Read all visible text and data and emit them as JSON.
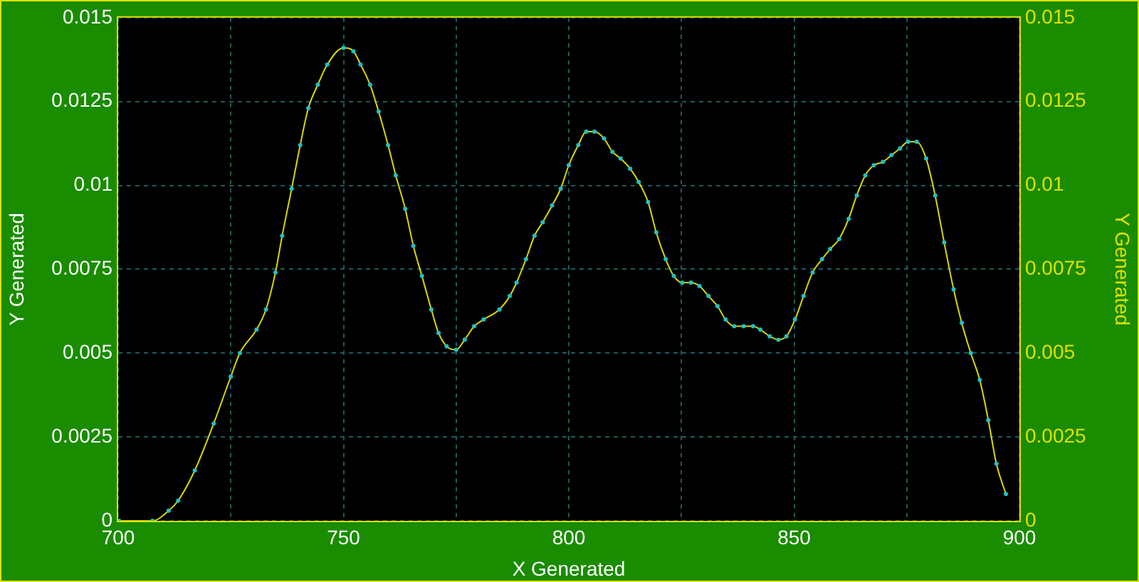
{
  "chart_data": {
    "type": "line",
    "xlabel": "X Generated",
    "ylabel": "Y Generated",
    "y2label": "Y Generated",
    "series": [
      {
        "color": "#d8d800",
        "x": [
          700.2,
          707.6,
          711.2,
          713.3,
          717,
          721.2,
          725,
          727,
          730.7,
          732.8,
          734.9,
          736.4,
          738.5,
          740.4,
          742.2,
          744.3,
          746.4,
          750,
          752.2,
          753.8,
          755.9,
          757.8,
          759.9,
          761.6,
          763.7,
          765.5,
          767.4,
          769.5,
          771.1,
          772.9,
          775,
          776.9,
          779,
          781.1,
          784.6,
          786.9,
          788.4,
          790.5,
          792.4,
          794.2,
          796.3,
          798.2,
          800,
          802.1,
          803.9,
          805.7,
          807.8,
          809.7,
          811.5,
          813.6,
          815.5,
          817.6,
          819.4,
          821.5,
          823.3,
          825.2,
          827.1,
          829,
          831,
          833,
          834.8,
          836.7,
          838.8,
          840.9,
          842.5,
          844.6,
          846.5,
          848.3,
          850.2,
          852.1,
          854.1,
          856.2,
          858,
          860,
          862.1,
          863.9,
          865.8,
          867.7,
          869.7,
          871.6,
          873.5,
          875.3,
          877.2,
          879.3,
          881.3,
          883.3,
          885.4,
          887.2,
          889.2,
          891.2,
          893.1,
          894.9,
          897
        ],
        "values": [
          0,
          0,
          0.0003,
          0.0006,
          0.0015,
          0.0029,
          0.0043,
          0.005,
          0.0057,
          0.0063,
          0.0074,
          0.0085,
          0.0099,
          0.0112,
          0.0123,
          0.013,
          0.0136,
          0.0141,
          0.014,
          0.0136,
          0.013,
          0.0122,
          0.0112,
          0.0103,
          0.0093,
          0.0082,
          0.0073,
          0.0063,
          0.0056,
          0.0052,
          0.0051,
          0.0054,
          0.0058,
          0.006,
          0.0063,
          0.0067,
          0.0071,
          0.0078,
          0.0085,
          0.0089,
          0.0094,
          0.0099,
          0.0106,
          0.0112,
          0.0116,
          0.0116,
          0.0114,
          0.011,
          0.0108,
          0.0105,
          0.0101,
          0.0095,
          0.0086,
          0.0078,
          0.0073,
          0.0071,
          0.0071,
          0.007,
          0.0067,
          0.0064,
          0.006,
          0.0058,
          0.0058,
          0.0058,
          0.0057,
          0.0055,
          0.0054,
          0.0055,
          0.006,
          0.0067,
          0.0074,
          0.0078,
          0.0081,
          0.0084,
          0.009,
          0.0097,
          0.0103,
          0.0106,
          0.0107,
          0.0109,
          0.0111,
          0.0113,
          0.0113,
          0.0108,
          0.0097,
          0.0083,
          0.0069,
          0.0059,
          0.005,
          0.0042,
          0.003,
          0.0017,
          0.0008
        ]
      }
    ],
    "xlim": [
      700,
      900
    ],
    "xticks": [
      700,
      {
        "value": 725,
        "label": null
      },
      750,
      {
        "value": 775,
        "label": null
      },
      800,
      {
        "value": 825,
        "label": null
      },
      850,
      {
        "value": 875,
        "label": null
      },
      900
    ],
    "ylim": [
      0,
      0.015
    ],
    "yticks": [
      0,
      0.0025,
      0.005,
      0.0075,
      0.01,
      0.0125,
      0.015
    ],
    "y2lim": [
      0,
      0.015
    ],
    "y2ticks": [
      0,
      0.0025,
      0.005,
      0.0075,
      0.01,
      0.0125,
      0.015
    ],
    "grid": true,
    "legend": false,
    "marker": "circle",
    "line_style": "solid"
  }
}
